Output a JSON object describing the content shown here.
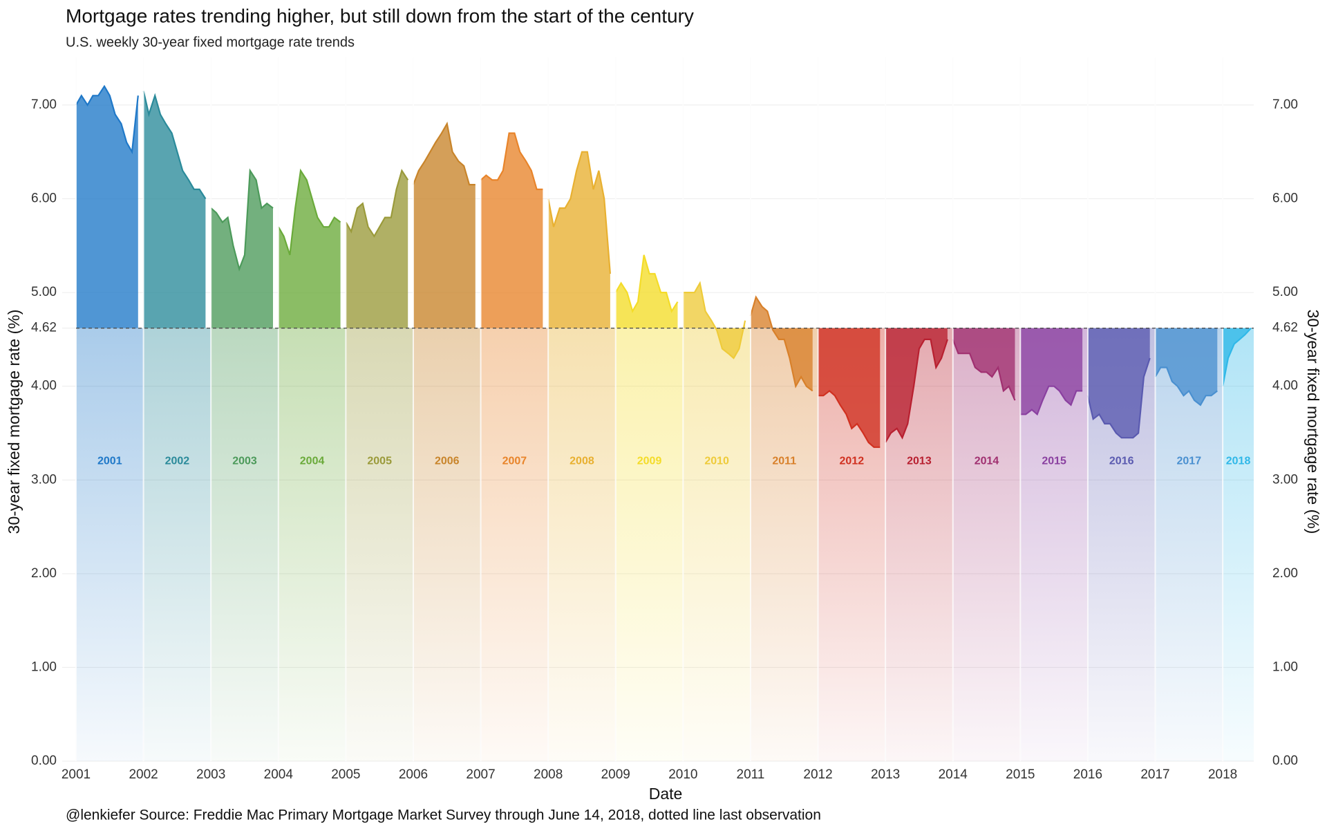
{
  "chart_data": {
    "type": "area",
    "title": "Mortgage rates trending higher, but still down from the start of the century",
    "subtitle": "U.S. weekly 30-year fixed mortgage rate trends",
    "x_label": "Date",
    "y_label": "30-year fixed mortgage rate (%)",
    "y2_label": "30-year fixed mortgage rate (%)",
    "caption": "@lenkiefer Source: Freddie Mac Primary Mortgage Market Survey through June 14, 2018, dotted line last observation",
    "reference": 4.62,
    "xlim": [
      2001,
      2018.46
    ],
    "xticks": [
      2001,
      2002,
      2003,
      2004,
      2005,
      2006,
      2007,
      2008,
      2009,
      2010,
      2011,
      2012,
      2013,
      2014,
      2015,
      2016,
      2017,
      2018
    ],
    "ylim": [
      0,
      7.25
    ],
    "yticks": [
      {
        "value": 0,
        "label": "0.00"
      },
      {
        "value": 1,
        "label": "1.00"
      },
      {
        "value": 2,
        "label": "2.00"
      },
      {
        "value": 3,
        "label": "3.00"
      },
      {
        "value": 4,
        "label": "4.00"
      },
      {
        "value": 4.62,
        "label": "4.62"
      },
      {
        "value": 5,
        "label": "5.00"
      },
      {
        "value": 6,
        "label": "6.00"
      },
      {
        "value": 7,
        "label": "7.00"
      }
    ],
    "y2lim": [
      0,
      7.25
    ],
    "y2ticks": [
      {
        "value": 0,
        "label": "0.00"
      },
      {
        "value": 1,
        "label": "1.00"
      },
      {
        "value": 2,
        "label": "2.00"
      },
      {
        "value": 3,
        "label": "3.00"
      },
      {
        "value": 4,
        "label": "4.00"
      },
      {
        "value": 4.62,
        "label": "4.62"
      },
      {
        "value": 5,
        "label": "5.00"
      },
      {
        "value": 6,
        "label": "6.00"
      },
      {
        "value": 7,
        "label": "7.00"
      }
    ],
    "grid": true,
    "series": [
      {
        "name": "2001",
        "color": "#1f78c8",
        "x": [
          2001.0,
          2001.08,
          2001.17,
          2001.25,
          2001.33,
          2001.42,
          2001.5,
          2001.58,
          2001.67,
          2001.75,
          2001.83,
          2001.92
        ],
        "values": [
          7.0,
          7.1,
          7.0,
          7.1,
          7.1,
          7.2,
          7.1,
          6.9,
          6.8,
          6.6,
          6.5,
          7.1
        ]
      },
      {
        "name": "2002",
        "color": "#2a8a9a",
        "x": [
          2002.0,
          2002.08,
          2002.17,
          2002.25,
          2002.33,
          2002.42,
          2002.5,
          2002.58,
          2002.67,
          2002.75,
          2002.83,
          2002.92
        ],
        "values": [
          7.15,
          6.9,
          7.1,
          6.9,
          6.8,
          6.7,
          6.5,
          6.3,
          6.2,
          6.1,
          6.1,
          6.0
        ]
      },
      {
        "name": "2003",
        "color": "#4c9a5a",
        "x": [
          2003.0,
          2003.08,
          2003.17,
          2003.25,
          2003.33,
          2003.42,
          2003.5,
          2003.58,
          2003.67,
          2003.75,
          2003.83,
          2003.92
        ],
        "values": [
          5.9,
          5.85,
          5.75,
          5.8,
          5.5,
          5.25,
          5.4,
          6.3,
          6.2,
          5.9,
          5.95,
          5.9
        ]
      },
      {
        "name": "2004",
        "color": "#6aaa3a",
        "x": [
          2004.0,
          2004.08,
          2004.17,
          2004.25,
          2004.33,
          2004.42,
          2004.5,
          2004.58,
          2004.67,
          2004.75,
          2004.83,
          2004.92
        ],
        "values": [
          5.7,
          5.6,
          5.4,
          5.9,
          6.3,
          6.2,
          6.0,
          5.8,
          5.7,
          5.7,
          5.8,
          5.75
        ]
      },
      {
        "name": "2005",
        "color": "#9a9a3a",
        "x": [
          2005.0,
          2005.08,
          2005.17,
          2005.25,
          2005.33,
          2005.42,
          2005.5,
          2005.58,
          2005.67,
          2005.75,
          2005.83,
          2005.92
        ],
        "values": [
          5.75,
          5.65,
          5.9,
          5.95,
          5.7,
          5.6,
          5.7,
          5.8,
          5.8,
          6.1,
          6.3,
          6.2
        ]
      },
      {
        "name": "2006",
        "color": "#c8842a",
        "x": [
          2006.0,
          2006.08,
          2006.17,
          2006.25,
          2006.33,
          2006.42,
          2006.5,
          2006.58,
          2006.67,
          2006.75,
          2006.83,
          2006.92
        ],
        "values": [
          6.15,
          6.3,
          6.4,
          6.5,
          6.6,
          6.7,
          6.8,
          6.5,
          6.4,
          6.35,
          6.15,
          6.15
        ]
      },
      {
        "name": "2007",
        "color": "#e8842a",
        "x": [
          2007.0,
          2007.08,
          2007.17,
          2007.25,
          2007.33,
          2007.42,
          2007.5,
          2007.58,
          2007.67,
          2007.75,
          2007.83,
          2007.92
        ],
        "values": [
          6.2,
          6.25,
          6.2,
          6.2,
          6.3,
          6.7,
          6.7,
          6.5,
          6.4,
          6.3,
          6.1,
          6.1
        ]
      },
      {
        "name": "2008",
        "color": "#e8b030",
        "x": [
          2008.0,
          2008.08,
          2008.17,
          2008.25,
          2008.33,
          2008.42,
          2008.5,
          2008.58,
          2008.67,
          2008.75,
          2008.83,
          2008.92
        ],
        "values": [
          6.0,
          5.7,
          5.9,
          5.9,
          6.0,
          6.3,
          6.5,
          6.5,
          6.1,
          6.3,
          6.0,
          5.2
        ]
      },
      {
        "name": "2009",
        "color": "#f4dc28",
        "x": [
          2009.0,
          2009.08,
          2009.17,
          2009.25,
          2009.33,
          2009.42,
          2009.5,
          2009.58,
          2009.67,
          2009.75,
          2009.83,
          2009.92
        ],
        "values": [
          5.0,
          5.1,
          5.0,
          4.8,
          4.9,
          5.4,
          5.2,
          5.2,
          5.0,
          5.0,
          4.8,
          4.9
        ]
      },
      {
        "name": "2010",
        "color": "#eecb3a",
        "x": [
          2010.0,
          2010.08,
          2010.17,
          2010.25,
          2010.33,
          2010.42,
          2010.5,
          2010.58,
          2010.67,
          2010.75,
          2010.83,
          2010.92
        ],
        "values": [
          5.0,
          5.0,
          5.0,
          5.1,
          4.8,
          4.7,
          4.6,
          4.4,
          4.35,
          4.3,
          4.4,
          4.7
        ]
      },
      {
        "name": "2011",
        "color": "#d8802a",
        "x": [
          2011.0,
          2011.08,
          2011.17,
          2011.25,
          2011.33,
          2011.42,
          2011.5,
          2011.58,
          2011.67,
          2011.75,
          2011.83,
          2011.92
        ],
        "values": [
          4.75,
          4.95,
          4.85,
          4.8,
          4.6,
          4.5,
          4.5,
          4.3,
          4.0,
          4.1,
          4.0,
          3.95
        ]
      },
      {
        "name": "2012",
        "color": "#d03020",
        "x": [
          2012.0,
          2012.08,
          2012.17,
          2012.25,
          2012.33,
          2012.42,
          2012.5,
          2012.58,
          2012.67,
          2012.75,
          2012.83,
          2012.92
        ],
        "values": [
          3.9,
          3.9,
          3.95,
          3.9,
          3.8,
          3.7,
          3.55,
          3.6,
          3.5,
          3.4,
          3.35,
          3.35
        ]
      },
      {
        "name": "2013",
        "color": "#b82030",
        "x": [
          2013.0,
          2013.08,
          2013.17,
          2013.25,
          2013.33,
          2013.42,
          2013.5,
          2013.58,
          2013.67,
          2013.75,
          2013.83,
          2013.92
        ],
        "values": [
          3.4,
          3.5,
          3.55,
          3.45,
          3.6,
          4.0,
          4.4,
          4.5,
          4.5,
          4.2,
          4.3,
          4.5
        ]
      },
      {
        "name": "2014",
        "color": "#a03070",
        "x": [
          2014.0,
          2014.08,
          2014.17,
          2014.25,
          2014.33,
          2014.42,
          2014.5,
          2014.58,
          2014.67,
          2014.75,
          2014.83,
          2014.92
        ],
        "values": [
          4.5,
          4.35,
          4.35,
          4.35,
          4.2,
          4.15,
          4.15,
          4.1,
          4.2,
          3.95,
          4.0,
          3.85
        ]
      },
      {
        "name": "2015",
        "color": "#8a40a0",
        "x": [
          2015.0,
          2015.08,
          2015.17,
          2015.25,
          2015.33,
          2015.42,
          2015.5,
          2015.58,
          2015.67,
          2015.75,
          2015.83,
          2015.92
        ],
        "values": [
          3.7,
          3.7,
          3.75,
          3.7,
          3.85,
          4.0,
          4.0,
          3.95,
          3.85,
          3.8,
          3.95,
          3.95
        ]
      },
      {
        "name": "2016",
        "color": "#5a5ab0",
        "x": [
          2016.0,
          2016.08,
          2016.17,
          2016.25,
          2016.33,
          2016.42,
          2016.5,
          2016.58,
          2016.67,
          2016.75,
          2016.83,
          2016.92
        ],
        "values": [
          3.9,
          3.65,
          3.7,
          3.6,
          3.6,
          3.5,
          3.45,
          3.45,
          3.45,
          3.5,
          4.1,
          4.3
        ]
      },
      {
        "name": "2017",
        "color": "#4a90d0",
        "x": [
          2017.0,
          2017.08,
          2017.17,
          2017.25,
          2017.33,
          2017.42,
          2017.5,
          2017.58,
          2017.67,
          2017.75,
          2017.83,
          2017.92
        ],
        "values": [
          4.1,
          4.2,
          4.2,
          4.05,
          4.0,
          3.9,
          3.95,
          3.85,
          3.8,
          3.9,
          3.9,
          3.95
        ]
      },
      {
        "name": "2018",
        "color": "#30b8e8",
        "x": [
          2018.0,
          2018.08,
          2018.17,
          2018.25,
          2018.33,
          2018.42
        ],
        "values": [
          4.0,
          4.3,
          4.45,
          4.5,
          4.55,
          4.62
        ]
      }
    ]
  }
}
